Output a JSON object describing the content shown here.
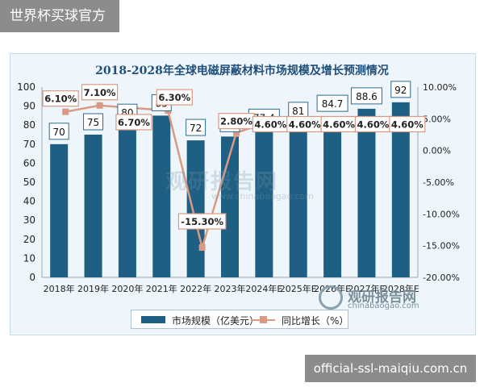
{
  "top_tag": "世界杯买球官方",
  "bottom_tag": "official-ssl-maiqiu.com.cn",
  "watermark": {
    "cn": "观研报告网",
    "url": "www.chinabaogao.com"
  },
  "brand": {
    "cn": "观研报告网",
    "en": "chinabaogao.com"
  },
  "colors": {
    "bar": "#1f5f83",
    "line": "#d99a84",
    "frame_bg": "#eef6fb",
    "title": "#1f4e79"
  },
  "chart_data": {
    "type": "bar",
    "title": "2018-2028年全球电磁屏蔽材料市场规模及增长预测情况",
    "categories": [
      "2018年",
      "2019年",
      "2020年",
      "2021年",
      "2022年",
      "2023年",
      "2024年E",
      "2025年E",
      "2026年E",
      "2027年E",
      "2028年E"
    ],
    "series": [
      {
        "name": "市场规模（亿美元）",
        "type": "bar",
        "axis": "left",
        "values": [
          70,
          75,
          80,
          85,
          72,
          74,
          77.4,
          81,
          84.7,
          88.6,
          92
        ],
        "labels": [
          "70",
          "75",
          "80",
          "85",
          "72",
          "74",
          "77.4",
          "81",
          "84.7",
          "88.6",
          "92"
        ]
      },
      {
        "name": "同比增长（%）",
        "type": "line",
        "axis": "right",
        "values": [
          6.1,
          7.1,
          6.7,
          6.3,
          -15.3,
          2.8,
          4.6,
          4.6,
          4.6,
          4.6,
          4.6
        ],
        "labels": [
          "6.10%",
          "7.10%",
          "6.70%",
          "6.30%",
          "-15.30%",
          "2.80%",
          "4.60%",
          "4.60%",
          "4.60%",
          "4.60%",
          "4.60%"
        ]
      }
    ],
    "y_left": {
      "min": 0,
      "max": 100,
      "ticks": [
        "0",
        "10",
        "20",
        "30",
        "40",
        "50",
        "60",
        "70",
        "80",
        "90",
        "100"
      ]
    },
    "y_right": {
      "min": -20,
      "max": 10,
      "ticks": [
        "-20.00%",
        "-15.00%",
        "-10.00%",
        "-5.00%",
        "0.00%",
        "5.00%",
        "10.00%"
      ]
    },
    "grid": false,
    "legend": "bottom"
  }
}
